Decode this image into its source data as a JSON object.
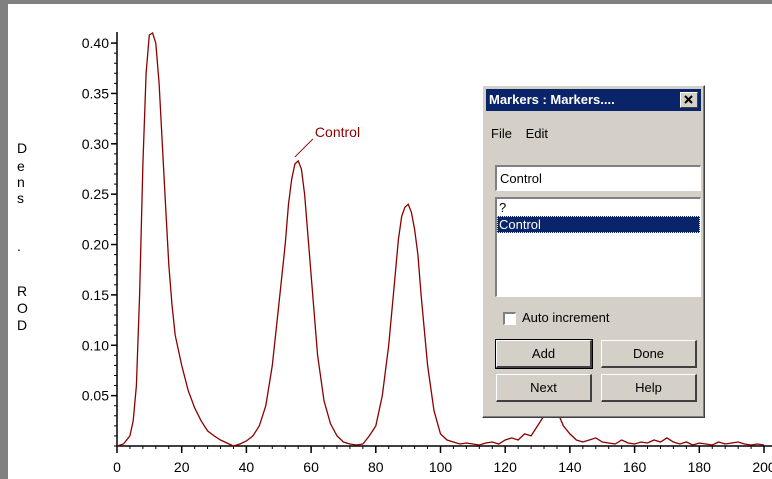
{
  "chart_data": {
    "type": "line",
    "ylabel": "Dens. ROD",
    "ylabel_letters": [
      "D",
      "e",
      "n",
      "s",
      ".",
      "R",
      "O",
      "D"
    ],
    "xlim": [
      0,
      200
    ],
    "ylim": [
      0,
      0.41
    ],
    "xticks": [
      0,
      20,
      40,
      60,
      80,
      100,
      120,
      140,
      160,
      180,
      200
    ],
    "yticks": [
      0.05,
      0.1,
      0.15,
      0.2,
      0.25,
      0.3,
      0.35,
      0.4
    ],
    "ytick_labels": [
      "0.05",
      "0.10",
      "0.15",
      "0.20",
      "0.25",
      "0.30",
      "0.35",
      "0.40"
    ],
    "xtick_labels": [
      "0",
      "20",
      "40",
      "60",
      "80",
      "100",
      "120",
      "140",
      "160",
      "180",
      "200"
    ],
    "line_color": "#8b0000",
    "series": [
      {
        "x": [
          0,
          2,
          4,
          5,
          6,
          7,
          8,
          9,
          10,
          11,
          12,
          13,
          14,
          15,
          16,
          17,
          18,
          20,
          22,
          24,
          26,
          28,
          30,
          32,
          34,
          36,
          38,
          40,
          42,
          44,
          46,
          48,
          50,
          52,
          53,
          54,
          55,
          56,
          57,
          58,
          60,
          62,
          64,
          66,
          68,
          70,
          72,
          74,
          76,
          78,
          80,
          82,
          84,
          86,
          87,
          88,
          89,
          90,
          91,
          92,
          93,
          94,
          96,
          98,
          100,
          102,
          104,
          106,
          108,
          110,
          112,
          114,
          116,
          118,
          120,
          122,
          124,
          126,
          128,
          130,
          132,
          134,
          136,
          138,
          140,
          142,
          144,
          146,
          148,
          150,
          152,
          154,
          156,
          158,
          160,
          162,
          164,
          166,
          168,
          170,
          172,
          174,
          176,
          178,
          180,
          182,
          184,
          186,
          188,
          190,
          192,
          194,
          196,
          198,
          200
        ],
        "y": [
          0,
          0.002,
          0.01,
          0.025,
          0.06,
          0.15,
          0.28,
          0.37,
          0.408,
          0.41,
          0.4,
          0.36,
          0.3,
          0.24,
          0.18,
          0.14,
          0.11,
          0.08,
          0.055,
          0.038,
          0.025,
          0.015,
          0.01,
          0.006,
          0.003,
          0,
          0.002,
          0.005,
          0.01,
          0.02,
          0.04,
          0.08,
          0.14,
          0.2,
          0.24,
          0.265,
          0.28,
          0.283,
          0.275,
          0.25,
          0.17,
          0.09,
          0.045,
          0.022,
          0.01,
          0.004,
          0.002,
          0.001,
          0.002,
          0.01,
          0.02,
          0.05,
          0.1,
          0.17,
          0.205,
          0.228,
          0.237,
          0.24,
          0.232,
          0.215,
          0.19,
          0.15,
          0.08,
          0.035,
          0.012,
          0.006,
          0.004,
          0.002,
          0.003,
          0.002,
          0.001,
          0.003,
          0.004,
          0.002,
          0.006,
          0.008,
          0.006,
          0.012,
          0.01,
          0.02,
          0.03,
          0.04,
          0.035,
          0.02,
          0.012,
          0.006,
          0.004,
          0.006,
          0.008,
          0.004,
          0.003,
          0.002,
          0.006,
          0.003,
          0.002,
          0.004,
          0.003,
          0.006,
          0.004,
          0.008,
          0.004,
          0.002,
          0.004,
          0.001,
          0.003,
          0.002,
          0.001,
          0.004,
          0.002,
          0.003,
          0.004,
          0.002,
          0.001,
          0.002,
          0.001
        ]
      }
    ],
    "annotations": [
      {
        "text": "Control",
        "x": 55,
        "y": 0.283
      }
    ]
  },
  "dialog": {
    "title": "Markers : Markers....",
    "menu": [
      "File",
      "Edit"
    ],
    "name_field_value": "Control",
    "list_items": [
      "?",
      "Control"
    ],
    "selected_index": 1,
    "auto_increment_label": "Auto increment",
    "auto_increment_checked": false,
    "buttons": {
      "add": "Add",
      "done": "Done",
      "next": "Next",
      "help": "Help"
    },
    "close_glyph": "✕"
  }
}
